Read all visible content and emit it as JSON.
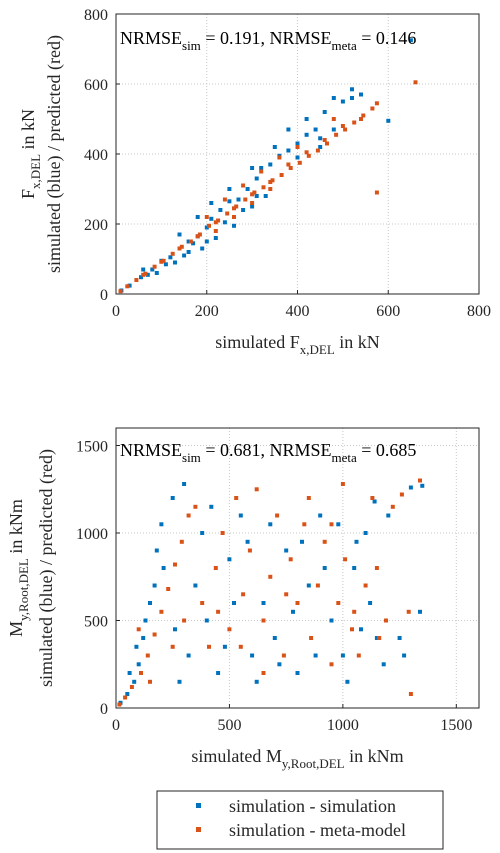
{
  "chart_data": [
    {
      "type": "scatter",
      "annotation": {
        "nrmse_label": "NRMSE",
        "sim_sub": "sim",
        "sim_value": " = 0.191, ",
        "meta_sub": "meta",
        "meta_value": " = 0.146"
      },
      "xlabel": {
        "main": "simulated F",
        "sub": "x,DEL",
        "tail": " in kN"
      },
      "ylabel": {
        "line1_main": "F",
        "line1_sub": "x,DEL",
        "line1_tail": " in kN",
        "line2": "simulated (blue) / predicted (red)"
      },
      "xlim": [
        0,
        800
      ],
      "ylim": [
        0,
        800
      ],
      "xticks": [
        "0",
        "200",
        "400",
        "600",
        "800"
      ],
      "yticks": [
        "0",
        "200",
        "400",
        "600",
        "800"
      ],
      "grid": true,
      "series": [
        {
          "name": "simulation - simulation",
          "color": "#0072BD",
          "points": [
            [
              12,
              10
            ],
            [
              30,
              24
            ],
            [
              55,
              48
            ],
            [
              80,
              70
            ],
            [
              100,
              95
            ],
            [
              120,
              105
            ],
            [
              140,
              130
            ],
            [
              160,
              150
            ],
            [
              180,
              165
            ],
            [
              200,
              190
            ],
            [
              210,
              215
            ],
            [
              230,
              240
            ],
            [
              250,
              265
            ],
            [
              270,
              270
            ],
            [
              290,
              300
            ],
            [
              310,
              330
            ],
            [
              320,
              360
            ],
            [
              340,
              370
            ],
            [
              360,
              395
            ],
            [
              380,
              410
            ],
            [
              400,
              430
            ],
            [
              420,
              455
            ],
            [
              440,
              470
            ],
            [
              460,
              520
            ],
            [
              480,
              560
            ],
            [
              500,
              550
            ],
            [
              520,
              585
            ],
            [
              540,
              570
            ],
            [
              600,
              495
            ],
            [
              650,
              725
            ],
            [
              520,
              560
            ],
            [
              450,
              445
            ],
            [
              300,
              360
            ],
            [
              310,
              280
            ],
            [
              280,
              240
            ],
            [
              260,
              195
            ],
            [
              240,
              205
            ],
            [
              220,
              160
            ],
            [
              190,
              130
            ],
            [
              170,
              145
            ],
            [
              150,
              110
            ],
            [
              130,
              90
            ],
            [
              110,
              85
            ],
            [
              90,
              60
            ],
            [
              70,
              55
            ],
            [
              60,
              70
            ],
            [
              140,
              170
            ],
            [
              180,
              220
            ],
            [
              210,
              260
            ],
            [
              250,
              300
            ],
            [
              350,
              420
            ],
            [
              380,
              470
            ],
            [
              420,
              500
            ],
            [
              300,
              250
            ],
            [
              330,
              280
            ],
            [
              400,
              390
            ],
            [
              450,
              420
            ],
            [
              480,
              470
            ],
            [
              200,
              150
            ],
            [
              160,
              120
            ]
          ]
        },
        {
          "name": "simulation - meta-model",
          "color": "#D95319",
          "points": [
            [
              10,
              8
            ],
            [
              25,
              22
            ],
            [
              45,
              40
            ],
            [
              65,
              58
            ],
            [
              85,
              78
            ],
            [
              105,
              95
            ],
            [
              125,
              115
            ],
            [
              145,
              135
            ],
            [
              165,
              150
            ],
            [
              185,
              170
            ],
            [
              205,
              195
            ],
            [
              225,
              210
            ],
            [
              245,
              230
            ],
            [
              265,
              250
            ],
            [
              285,
              270
            ],
            [
              305,
              290
            ],
            [
              325,
              305
            ],
            [
              345,
              325
            ],
            [
              365,
              340
            ],
            [
              385,
              360
            ],
            [
              405,
              375
            ],
            [
              425,
              395
            ],
            [
              445,
              410
            ],
            [
              465,
              430
            ],
            [
              485,
              455
            ],
            [
              505,
              470
            ],
            [
              525,
              490
            ],
            [
              545,
              510
            ],
            [
              565,
              530
            ],
            [
              575,
              545
            ],
            [
              660,
              605
            ],
            [
              575,
              290
            ],
            [
              540,
              500
            ],
            [
              500,
              480
            ],
            [
              460,
              440
            ],
            [
              420,
              405
            ],
            [
              380,
              370
            ],
            [
              340,
              320
            ],
            [
              300,
              285
            ],
            [
              260,
              245
            ],
            [
              220,
              205
            ],
            [
              180,
              165
            ],
            [
              140,
              130
            ],
            [
              100,
              92
            ],
            [
              60,
              55
            ],
            [
              200,
              220
            ],
            [
              240,
              270
            ],
            [
              280,
              310
            ],
            [
              320,
              350
            ],
            [
              360,
              390
            ],
            [
              400,
              420
            ],
            [
              220,
              180
            ],
            [
              260,
              220
            ],
            [
              300,
              260
            ],
            [
              340,
              300
            ],
            [
              480,
              500
            ]
          ]
        }
      ]
    },
    {
      "type": "scatter",
      "annotation": {
        "nrmse_label": "NRMSE",
        "sim_sub": "sim",
        "sim_value": " = 0.681, ",
        "meta_sub": "meta",
        "meta_value": " = 0.685"
      },
      "xlabel": {
        "main": "simulated M",
        "sub": "y,Root,DEL",
        "tail": " in kNm"
      },
      "ylabel": {
        "line1_main": "M",
        "line1_sub": "y,Root,DEL",
        "line1_tail": " in kNm",
        "line2": "simulated (blue) / predicted (red)"
      },
      "xlim": [
        0,
        1600
      ],
      "ylim": [
        0,
        1600
      ],
      "xticks": [
        "0",
        "500",
        "1000",
        "1500"
      ],
      "yticks": [
        "0",
        "500",
        "1000",
        "1500"
      ],
      "grid": true,
      "series": [
        {
          "name": "simulation - simulation",
          "color": "#0072BD",
          "points": [
            [
              20,
              30
            ],
            [
              50,
              80
            ],
            [
              80,
              150
            ],
            [
              100,
              250
            ],
            [
              120,
              400
            ],
            [
              150,
              600
            ],
            [
              180,
              900
            ],
            [
              200,
              1050
            ],
            [
              250,
              1200
            ],
            [
              300,
              1280
            ],
            [
              320,
              300
            ],
            [
              350,
              700
            ],
            [
              400,
              500
            ],
            [
              450,
              200
            ],
            [
              500,
              850
            ],
            [
              550,
              1100
            ],
            [
              600,
              300
            ],
            [
              650,
              600
            ],
            [
              700,
              400
            ],
            [
              750,
              900
            ],
            [
              800,
              200
            ],
            [
              850,
              700
            ],
            [
              900,
              1100
            ],
            [
              950,
              500
            ],
            [
              1000,
              300
            ],
            [
              1050,
              800
            ],
            [
              1100,
              1000
            ],
            [
              1120,
              600
            ],
            [
              1150,
              400
            ],
            [
              1200,
              1100
            ],
            [
              1250,
              400
            ],
            [
              1300,
              1260
            ],
            [
              1350,
              1270
            ],
            [
              60,
              200
            ],
            [
              90,
              350
            ],
            [
              130,
              500
            ],
            [
              170,
              700
            ],
            [
              210,
              800
            ],
            [
              260,
              450
            ],
            [
              280,
              150
            ],
            [
              380,
              1000
            ],
            [
              420,
              1150
            ],
            [
              480,
              350
            ],
            [
              520,
              600
            ],
            [
              580,
              950
            ],
            [
              620,
              150
            ],
            [
              680,
              1050
            ],
            [
              720,
              250
            ],
            [
              780,
              550
            ],
            [
              820,
              950
            ],
            [
              880,
              300
            ],
            [
              920,
              800
            ],
            [
              980,
              1050
            ],
            [
              1020,
              150
            ],
            [
              1080,
              450
            ],
            [
              1140,
              1180
            ],
            [
              1180,
              250
            ],
            [
              1270,
              300
            ],
            [
              1340,
              550
            ],
            [
              1060,
              950
            ]
          ]
        },
        {
          "name": "simulation - meta-model",
          "color": "#D95319",
          "points": [
            [
              15,
              20
            ],
            [
              40,
              60
            ],
            [
              70,
              120
            ],
            [
              110,
              200
            ],
            [
              140,
              300
            ],
            [
              170,
              420
            ],
            [
              200,
              550
            ],
            [
              230,
              680
            ],
            [
              260,
              820
            ],
            [
              290,
              950
            ],
            [
              320,
              1100
            ],
            [
              350,
              1150
            ],
            [
              380,
              600
            ],
            [
              410,
              350
            ],
            [
              440,
              800
            ],
            [
              470,
              1000
            ],
            [
              500,
              450
            ],
            [
              530,
              1200
            ],
            [
              560,
              650
            ],
            [
              590,
              900
            ],
            [
              620,
              1250
            ],
            [
              650,
              500
            ],
            [
              680,
              750
            ],
            [
              710,
              1100
            ],
            [
              740,
              300
            ],
            [
              770,
              850
            ],
            [
              800,
              600
            ],
            [
              830,
              1050
            ],
            [
              860,
              400
            ],
            [
              890,
              700
            ],
            [
              920,
              950
            ],
            [
              950,
              250
            ],
            [
              980,
              600
            ],
            [
              1010,
              850
            ],
            [
              1040,
              450
            ],
            [
              1070,
              300
            ],
            [
              1100,
              700
            ],
            [
              1130,
              1200
            ],
            [
              1160,
              400
            ],
            [
              1190,
              500
            ],
            [
              1220,
              1150
            ],
            [
              1260,
              1220
            ],
            [
              1290,
              550
            ],
            [
              1340,
              1300
            ],
            [
              1300,
              80
            ],
            [
              1000,
              1280
            ],
            [
              100,
              450
            ],
            [
              150,
              150
            ],
            [
              250,
              350
            ],
            [
              300,
              500
            ],
            [
              450,
              550
            ],
            [
              550,
              350
            ],
            [
              650,
              200
            ],
            [
              750,
              650
            ],
            [
              850,
              1200
            ],
            [
              950,
              1050
            ],
            [
              1050,
              550
            ],
            [
              1150,
              800
            ]
          ]
        }
      ]
    }
  ],
  "legend": {
    "items": [
      {
        "label": "simulation - simulation",
        "color": "#0072BD"
      },
      {
        "label": "simulation - meta-model",
        "color": "#D95319"
      }
    ]
  }
}
